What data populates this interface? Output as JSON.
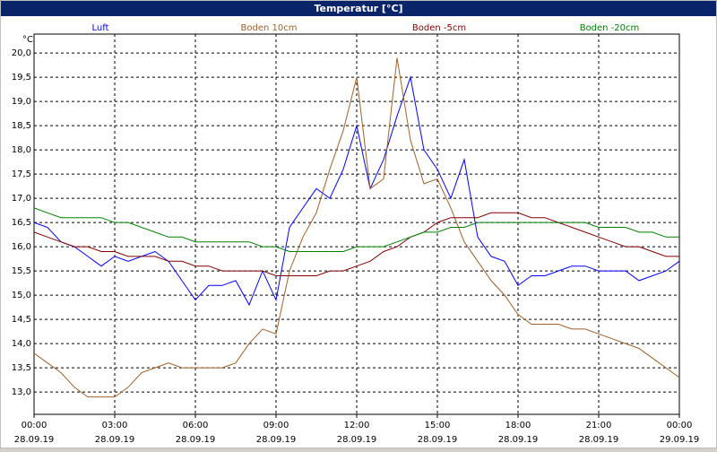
{
  "chart_data": {
    "type": "line",
    "title": "Temperatur [°C]",
    "y_unit": "°C",
    "grid": true,
    "x": [
      0,
      0.5,
      1,
      1.5,
      2,
      2.5,
      3,
      3.5,
      4,
      4.5,
      5,
      5.5,
      6,
      6.5,
      7,
      7.5,
      8,
      8.5,
      9,
      9.5,
      10,
      10.5,
      11,
      11.5,
      12,
      12.5,
      13,
      13.5,
      14,
      14.5,
      15,
      15.5,
      16,
      16.5,
      17,
      17.5,
      18,
      18.5,
      19,
      19.5,
      20,
      20.5,
      21,
      21.5,
      22,
      22.5,
      23,
      23.5,
      24
    ],
    "xlim": [
      0,
      24
    ],
    "xticks": [
      {
        "value": 0,
        "label": "00:00"
      },
      {
        "value": 3,
        "label": "03:00"
      },
      {
        "value": 6,
        "label": "06:00"
      },
      {
        "value": 9,
        "label": "09:00"
      },
      {
        "value": 12,
        "label": "12:00"
      },
      {
        "value": 15,
        "label": "15:00"
      },
      {
        "value": 18,
        "label": "18:00"
      },
      {
        "value": 21,
        "label": "21:00"
      },
      {
        "value": 24,
        "label": "00:00"
      }
    ],
    "xtick_dates": [
      "28.09.19",
      "28.09.19",
      "28.09.19",
      "28.09.19",
      "28.09.19",
      "28.09.19",
      "28.09.19",
      "28.09.19",
      "29.09.19"
    ],
    "ylim": [
      12.54,
      20.39
    ],
    "yticks": [
      {
        "value": 13,
        "label": "13,0"
      },
      {
        "value": 13.5,
        "label": "13,5"
      },
      {
        "value": 14,
        "label": "14,0"
      },
      {
        "value": 14.5,
        "label": "14,5"
      },
      {
        "value": 15,
        "label": "15,0"
      },
      {
        "value": 15.5,
        "label": "15,5"
      },
      {
        "value": 16,
        "label": "16,0"
      },
      {
        "value": 16.5,
        "label": "16,5"
      },
      {
        "value": 17,
        "label": "17,0"
      },
      {
        "value": 17.5,
        "label": "17,5"
      },
      {
        "value": 18,
        "label": "18,0"
      },
      {
        "value": 18.5,
        "label": "18,5"
      },
      {
        "value": 19,
        "label": "19,0"
      },
      {
        "value": 19.5,
        "label": "19,5"
      },
      {
        "value": 20,
        "label": "20,0"
      }
    ],
    "series": [
      {
        "name": "Luft",
        "color": "#0000ff",
        "values": [
          16.5,
          16.4,
          16.1,
          16.0,
          15.8,
          15.6,
          15.8,
          15.7,
          15.8,
          15.9,
          15.7,
          15.3,
          14.9,
          15.2,
          15.2,
          15.3,
          14.8,
          15.5,
          14.9,
          16.4,
          16.8,
          17.2,
          17.0,
          17.6,
          18.5,
          17.2,
          17.8,
          18.7,
          19.5,
          18.0,
          17.6,
          17.0,
          17.8,
          16.2,
          15.8,
          15.7,
          15.2,
          15.4,
          15.4,
          15.5,
          15.6,
          15.6,
          15.5,
          15.5,
          15.5,
          15.3,
          15.4,
          15.5,
          15.7
        ]
      },
      {
        "name": "Boden 10cm",
        "color": "#a0602a",
        "values": [
          13.8,
          13.6,
          13.4,
          13.1,
          12.9,
          12.9,
          12.9,
          13.1,
          13.4,
          13.5,
          13.6,
          13.5,
          13.5,
          13.5,
          13.5,
          13.6,
          14.0,
          14.3,
          14.2,
          15.5,
          16.2,
          16.7,
          17.6,
          18.4,
          19.5,
          17.2,
          17.4,
          19.9,
          18.2,
          17.3,
          17.4,
          16.8,
          16.1,
          15.7,
          15.3,
          15.0,
          14.6,
          14.4,
          14.4,
          14.4,
          14.3,
          14.3,
          14.2,
          14.1,
          14.0,
          13.9,
          13.7,
          13.5,
          13.3
        ]
      },
      {
        "name": "Boden -5cm",
        "color": "#800000",
        "values": [
          16.3,
          16.2,
          16.1,
          16.0,
          16.0,
          15.9,
          15.9,
          15.8,
          15.8,
          15.8,
          15.7,
          15.7,
          15.6,
          15.6,
          15.5,
          15.5,
          15.5,
          15.5,
          15.4,
          15.4,
          15.4,
          15.4,
          15.5,
          15.5,
          15.6,
          15.7,
          15.9,
          16.0,
          16.2,
          16.3,
          16.5,
          16.6,
          16.6,
          16.6,
          16.7,
          16.7,
          16.7,
          16.6,
          16.6,
          16.5,
          16.4,
          16.3,
          16.2,
          16.1,
          16.0,
          16.0,
          15.9,
          15.8,
          15.8
        ]
      },
      {
        "name": "Boden -20cm",
        "color": "#008000",
        "values": [
          16.8,
          16.7,
          16.6,
          16.6,
          16.6,
          16.6,
          16.5,
          16.5,
          16.4,
          16.3,
          16.2,
          16.2,
          16.1,
          16.1,
          16.1,
          16.1,
          16.1,
          16.0,
          16.0,
          15.9,
          15.9,
          15.9,
          15.9,
          15.9,
          16.0,
          16.0,
          16.0,
          16.1,
          16.2,
          16.3,
          16.3,
          16.4,
          16.4,
          16.5,
          16.5,
          16.5,
          16.5,
          16.5,
          16.5,
          16.5,
          16.5,
          16.5,
          16.4,
          16.4,
          16.4,
          16.3,
          16.3,
          16.2,
          16.2
        ]
      }
    ]
  }
}
